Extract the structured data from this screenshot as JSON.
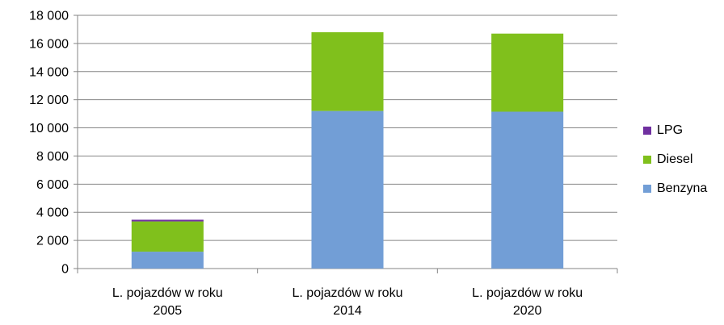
{
  "chart_data": {
    "type": "bar",
    "stacked": true,
    "categories": [
      [
        "L. pojazdów w roku",
        "2005"
      ],
      [
        "L. pojazdów w roku",
        "2014"
      ],
      [
        "L. pojazdów w roku",
        "2020"
      ]
    ],
    "series": [
      {
        "name": "Benzyna",
        "color": "#729ed6",
        "values": [
          1200,
          11200,
          11150
        ]
      },
      {
        "name": "Diesel",
        "color": "#80c01c",
        "values": [
          2150,
          5600,
          5550
        ]
      },
      {
        "name": "LPG",
        "color": "#7030a0",
        "values": [
          120,
          0,
          0
        ]
      }
    ],
    "ylim": [
      0,
      18000
    ],
    "yticks": [
      0,
      2000,
      4000,
      6000,
      8000,
      10000,
      12000,
      14000,
      16000,
      18000
    ],
    "ytick_labels": [
      "0",
      "2 000",
      "4 000",
      "6 000",
      "8 000",
      "10 000",
      "12 000",
      "14 000",
      "16 000",
      "18 000"
    ],
    "grid": true,
    "legend_position": "right",
    "legend_order": [
      "LPG",
      "Diesel",
      "Benzyna"
    ]
  }
}
